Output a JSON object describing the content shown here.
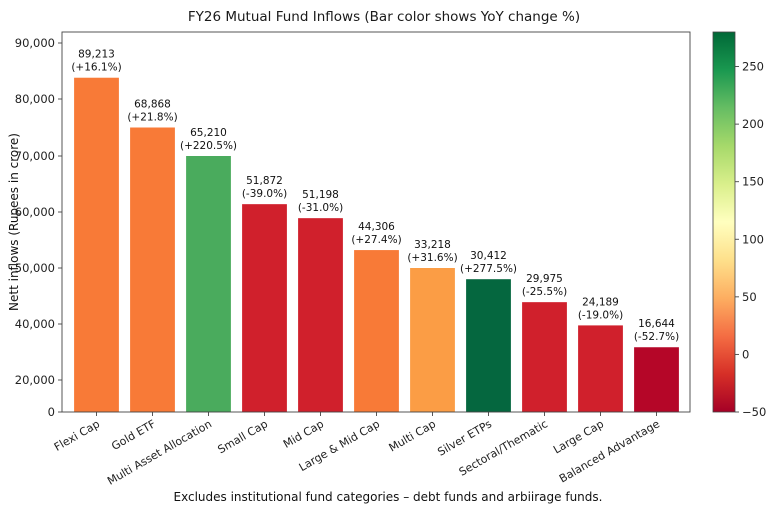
{
  "chart_data": {
    "type": "bar",
    "title": "FY26 Mutual Fund Inflows (Bar color shows YoY change %)",
    "xlabel": "",
    "ylabel": "Nett inflows (Rupees in crore)",
    "caption": "Excludes institutional fund categories – debt funds and arbiirage funds.",
    "categories": [
      "Flexi Cap",
      "Gold ETF",
      "Multi Asset Allocation",
      "Small Cap",
      "Mid Cap",
      "Large & Mid Cap",
      "Multi Cap",
      "Silver ETPs",
      "Sectoral/Thematic",
      "Large Cap",
      "Balanced Advantage"
    ],
    "values": [
      89213,
      68868,
      65210,
      51872,
      51198,
      44306,
      33218,
      30412,
      29975,
      24189,
      16644
    ],
    "yoy_change_pct": [
      16.1,
      21.8,
      220.5,
      -39.0,
      -31.0,
      27.4,
      31.6,
      277.5,
      -25.5,
      -19.0,
      -52.7
    ],
    "value_labels": [
      "89,213",
      "68,868",
      "65,210",
      "51,872",
      "51,198",
      "44,306",
      "33,218",
      "30,412",
      "29,975",
      "24,189",
      "16,644"
    ],
    "change_labels": [
      "(+16.1%)",
      "(+21.8%)",
      "(+220.5%)",
      "(-39.0%)",
      "(-31.0%)",
      "(+27.4%)",
      "(+31.6%)",
      "(+277.5%)",
      "(-25.5%)",
      "(-19.0%)",
      "(-52.7%)"
    ],
    "bar_height_on_axis": [
      83800,
      75000,
      70000,
      61400,
      58900,
      53200,
      50000,
      48000,
      43900,
      39500,
      31700
    ],
    "yticks": [
      0,
      20000,
      40000,
      50000,
      60000,
      70000,
      80000,
      90000
    ],
    "ytick_labels": [
      "0",
      "20,000",
      "40,000",
      "50,000",
      "60,000",
      "70,000",
      "80,000",
      "90,000"
    ],
    "ylim": [
      0,
      90000
    ],
    "grid": false,
    "colorbar": {
      "label": "",
      "range": [
        -50,
        280
      ],
      "ticks": [
        -50,
        0,
        50,
        100,
        150,
        200,
        250
      ],
      "tick_labels": [
        "−50",
        "0",
        "50",
        "100",
        "150",
        "200",
        "250"
      ],
      "colormap": "RdYlGn",
      "placement": "right"
    },
    "bar_colors": [
      "#f87a37",
      "#f87a37",
      "#4aab5d",
      "#d0202c",
      "#d0202c",
      "#f87a37",
      "#fb9d45",
      "#05673f",
      "#d0202c",
      "#d0202c",
      "#b50628"
    ]
  }
}
